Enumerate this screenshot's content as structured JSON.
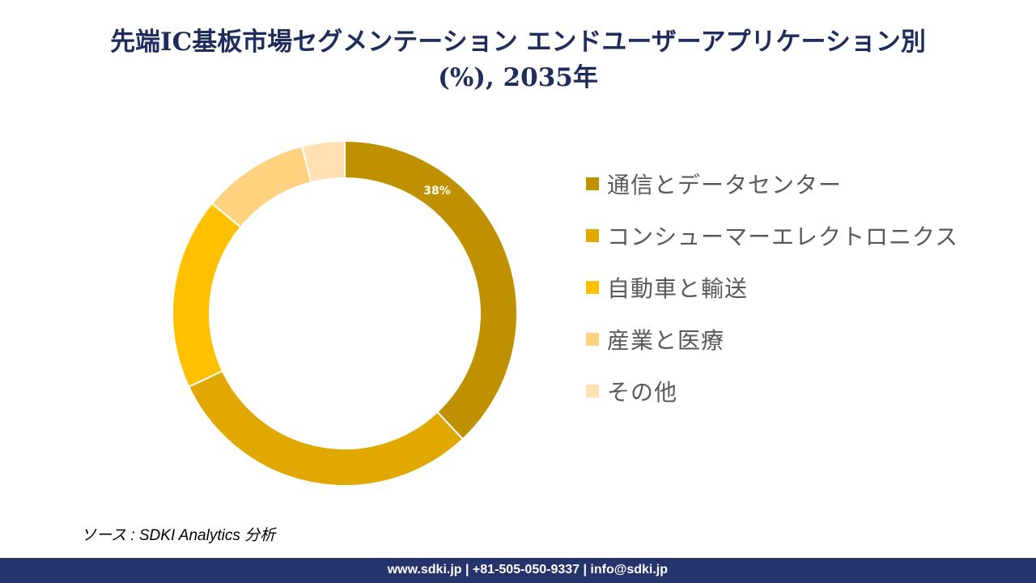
{
  "title_line1": "先端IC基板市場セグメンテーション エンドユーザーアプリケーション別",
  "title_line2": "(%), 2035年",
  "chart_data": {
    "type": "pie",
    "subtype": "donut",
    "title": "先端IC基板市場セグメンテーション エンドユーザーアプリケーション別 (%), 2035年",
    "categories": [
      "通信とデータセンター",
      "コンシューマーエレクトロニクス",
      "自動車と輸送",
      "産業と医療",
      "その他"
    ],
    "values": [
      38,
      30,
      18,
      10,
      4
    ],
    "data_labels": [
      "38%",
      "",
      "",
      "",
      ""
    ],
    "colors": [
      "#BF9000",
      "#E0A800",
      "#FFC000",
      "#FFD27F",
      "#FFE0B3"
    ],
    "legend_position": "right"
  },
  "source": "ソース : SDKI Analytics 分析",
  "footer": "www.sdki.jp | +81-505-050-9337 | info@sdki.jp"
}
